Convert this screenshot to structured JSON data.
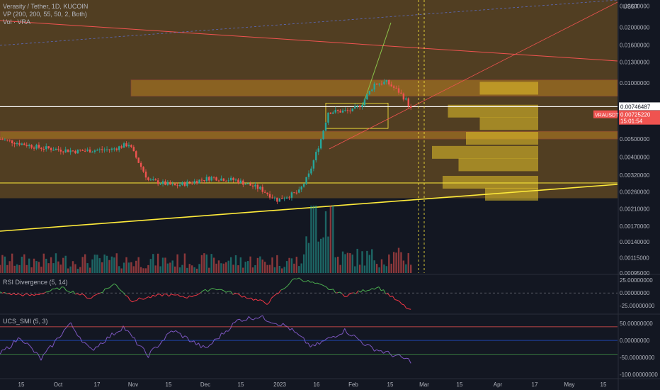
{
  "header": {
    "title": "Verasity / Tether, 1D, KUCOIN",
    "vp_label": "VP (200, 200, 55, 50, 2, Both)",
    "vol_label": "Vol · VRA"
  },
  "panels": {
    "rsi_title": "RSI Divergence (5, 14)",
    "smi_title": "UCS_SMI (5, 3)"
  },
  "price_axis": {
    "currency": "USDT",
    "ticks": [
      "0.02600000",
      "0.02000000",
      "0.01600000",
      "0.01300000",
      "0.01000000",
      "0.00500000",
      "0.00400000",
      "0.00320000",
      "0.00260000",
      "0.00210000",
      "0.00170000",
      "0.00140000",
      "0.00115000",
      "0.00095000"
    ],
    "tag_level": "0.00746487",
    "tag_symbol": "VRAUSDT",
    "tag_last": "0.00725220",
    "tag_countdown": "15:01:54"
  },
  "rsi_axis": {
    "ticks": [
      "25.00000000",
      "0.00000000",
      "-25.00000000"
    ]
  },
  "smi_axis": {
    "ticks": [
      "50.00000000",
      "0.00000000",
      "-50.00000000",
      "-100.00000000"
    ]
  },
  "time_axis": {
    "ticks": [
      "15",
      "Oct",
      "17",
      "Nov",
      "15",
      "Dec",
      "15",
      "2023",
      "16",
      "Feb",
      "15",
      "Mar",
      "15",
      "Apr",
      "17",
      "May",
      "15"
    ]
  },
  "colors": {
    "background": "#131722",
    "up": "#26a69a",
    "down": "#ef5350",
    "zone": "#f5a623",
    "support_line": "#ffeb3b",
    "rsi_up": "#4caf50",
    "rsi_down": "#f23645",
    "smi_line": "#7e57c2"
  },
  "chart_data": {
    "type": "candlestick",
    "title": "Verasity / Tether, 1D, KUCOIN",
    "ylabel": "USDT",
    "y_scale": "log",
    "ylim": [
      0.00095,
      0.028
    ],
    "x_range": [
      "2022-09-09",
      "2023-05-21"
    ],
    "last_price": 0.0072522,
    "marked_level": 0.00746487,
    "keypoints": [
      {
        "date": "2022-09-09",
        "close": 0.005
      },
      {
        "date": "2022-09-25",
        "close": 0.0045
      },
      {
        "date": "2022-10-10",
        "close": 0.0043
      },
      {
        "date": "2022-10-25",
        "close": 0.0044
      },
      {
        "date": "2022-11-01",
        "close": 0.0047
      },
      {
        "date": "2022-11-09",
        "close": 0.003
      },
      {
        "date": "2022-11-20",
        "close": 0.0028
      },
      {
        "date": "2022-12-05",
        "close": 0.0031
      },
      {
        "date": "2022-12-15",
        "close": 0.003
      },
      {
        "date": "2022-12-25",
        "close": 0.0027
      },
      {
        "date": "2023-01-01",
        "close": 0.00235
      },
      {
        "date": "2023-01-10",
        "close": 0.0026
      },
      {
        "date": "2023-01-14",
        "close": 0.0032
      },
      {
        "date": "2023-01-19",
        "close": 0.005
      },
      {
        "date": "2023-01-22",
        "close": 0.007
      },
      {
        "date": "2023-02-01",
        "close": 0.0071
      },
      {
        "date": "2023-02-05",
        "close": 0.0078
      },
      {
        "date": "2023-02-10",
        "close": 0.0099
      },
      {
        "date": "2023-02-15",
        "close": 0.0101
      },
      {
        "date": "2023-02-20",
        "close": 0.009
      },
      {
        "date": "2023-02-23",
        "close": 0.0081
      },
      {
        "date": "2023-02-25",
        "close": 0.00725
      }
    ],
    "volume_profile_peaks": [
      {
        "price": 0.0093,
        "volume": 0.55
      },
      {
        "price": 0.007,
        "volume": 0.85
      },
      {
        "price": 0.006,
        "volume": 0.55
      },
      {
        "price": 0.005,
        "volume": 0.68
      },
      {
        "price": 0.0042,
        "volume": 1.0
      },
      {
        "price": 0.0036,
        "volume": 0.75
      },
      {
        "price": 0.0029,
        "volume": 0.9
      },
      {
        "price": 0.0025,
        "volume": 0.5
      }
    ],
    "rsi": {
      "name": "RSI Divergence (5, 14)",
      "range": [
        -40,
        35
      ],
      "keypoints": [
        [
          0,
          0
        ],
        [
          0.08,
          -5
        ],
        [
          0.15,
          10
        ],
        [
          0.22,
          -10
        ],
        [
          0.28,
          18
        ],
        [
          0.32,
          -15
        ],
        [
          0.4,
          -3
        ],
        [
          0.46,
          -8
        ],
        [
          0.52,
          10
        ],
        [
          0.6,
          -8
        ],
        [
          0.65,
          -20
        ],
        [
          0.72,
          30
        ],
        [
          0.78,
          15
        ],
        [
          0.84,
          -5
        ],
        [
          0.92,
          12
        ],
        [
          1.0,
          -35
        ]
      ]
    },
    "smi": {
      "name": "UCS_SMI (5, 3)",
      "range": [
        -110,
        75
      ],
      "keypoints": [
        [
          0,
          -40
        ],
        [
          0.05,
          10
        ],
        [
          0.1,
          -55
        ],
        [
          0.17,
          50
        ],
        [
          0.22,
          -30
        ],
        [
          0.3,
          40
        ],
        [
          0.36,
          -45
        ],
        [
          0.42,
          30
        ],
        [
          0.5,
          -25
        ],
        [
          0.58,
          60
        ],
        [
          0.63,
          70
        ],
        [
          0.7,
          40
        ],
        [
          0.76,
          -20
        ],
        [
          0.84,
          30
        ],
        [
          0.9,
          -20
        ],
        [
          1.0,
          -60
        ]
      ]
    }
  }
}
